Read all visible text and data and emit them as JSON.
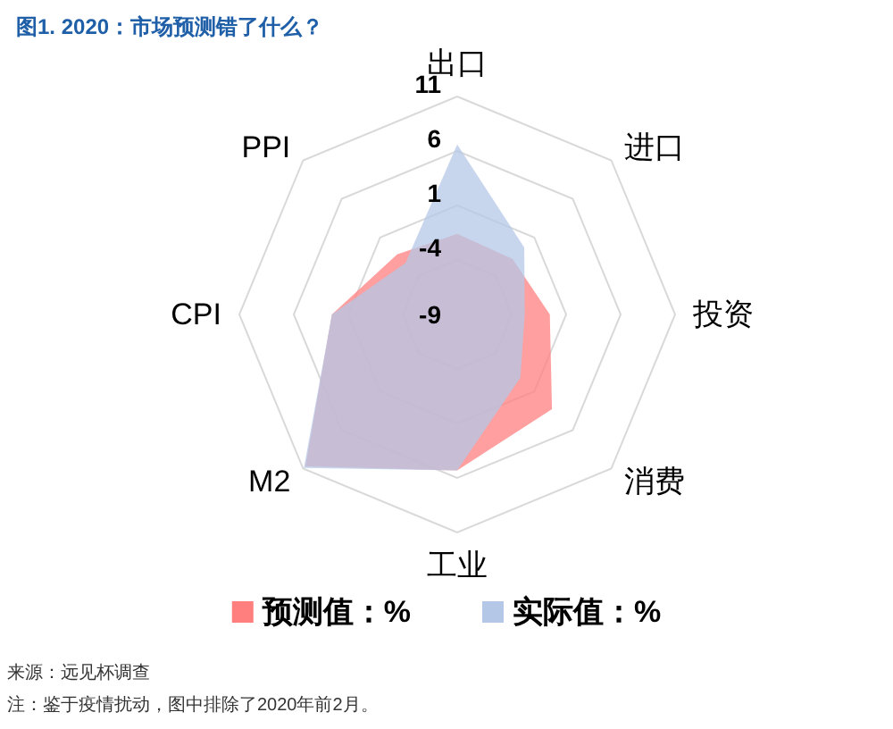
{
  "chart_data": {
    "type": "radar",
    "title": "图1. 2020：市场预测错了什么？",
    "categories": [
      "出口",
      "进口",
      "投资",
      "消费",
      "工业",
      "M2",
      "CPI",
      "PPI"
    ],
    "series": [
      {
        "name": "预测值：%",
        "color": "#ff7f7f",
        "values": [
          -1.6,
          -1.8,
          -0.5,
          3.3,
          5.3,
          10.7,
          2.5,
          -1.2
        ]
      },
      {
        "name": "实际值：%",
        "color": "#b4c7e7",
        "values": [
          6.6,
          -0.3,
          -2.8,
          -0.8,
          5.3,
          10.9,
          2.5,
          -2.3
        ]
      }
    ],
    "ylim": [
      -9,
      11
    ],
    "yticks": [
      -9,
      -4,
      1,
      6,
      11
    ],
    "legend": "bottom",
    "grid": true,
    "annotations": [
      "来源：远见杯调查",
      "注：鉴于疫情扰动，图中排除了2020年前2月。"
    ]
  }
}
